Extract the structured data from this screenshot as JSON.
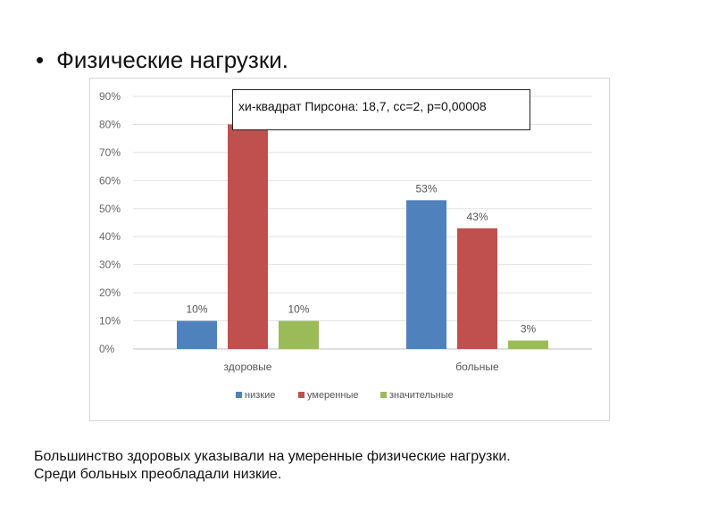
{
  "slide": {
    "bullet": "•",
    "title": "Физические нагрузки.",
    "annotation": "хи-квадрат Пирсона: 18,7, сс=2, p=0,00008",
    "caption_lines": [
      "Большинство здоровых указывали на умеренные физические нагрузки.",
      "Среди больных преобладали низкие."
    ]
  },
  "chart_data": {
    "type": "bar",
    "categories": [
      "здоровые",
      "больные"
    ],
    "series": [
      {
        "name": "низкие",
        "values": [
          10,
          53
        ],
        "labels": [
          "10%",
          "53%"
        ],
        "color": "#4f81bd"
      },
      {
        "name": "умеренные",
        "values": [
          80,
          43
        ],
        "labels": [
          "",
          "43%"
        ],
        "color": "#c0504d"
      },
      {
        "name": "значительные",
        "values": [
          10,
          3
        ],
        "labels": [
          "10%",
          "3%"
        ],
        "color": "#9bbb59"
      }
    ],
    "ylim": [
      0,
      90
    ],
    "yticks": [
      "0%",
      "10%",
      "20%",
      "30%",
      "40%",
      "50%",
      "60%",
      "70%",
      "80%",
      "90%"
    ],
    "grid": true,
    "legend": "bottom"
  }
}
